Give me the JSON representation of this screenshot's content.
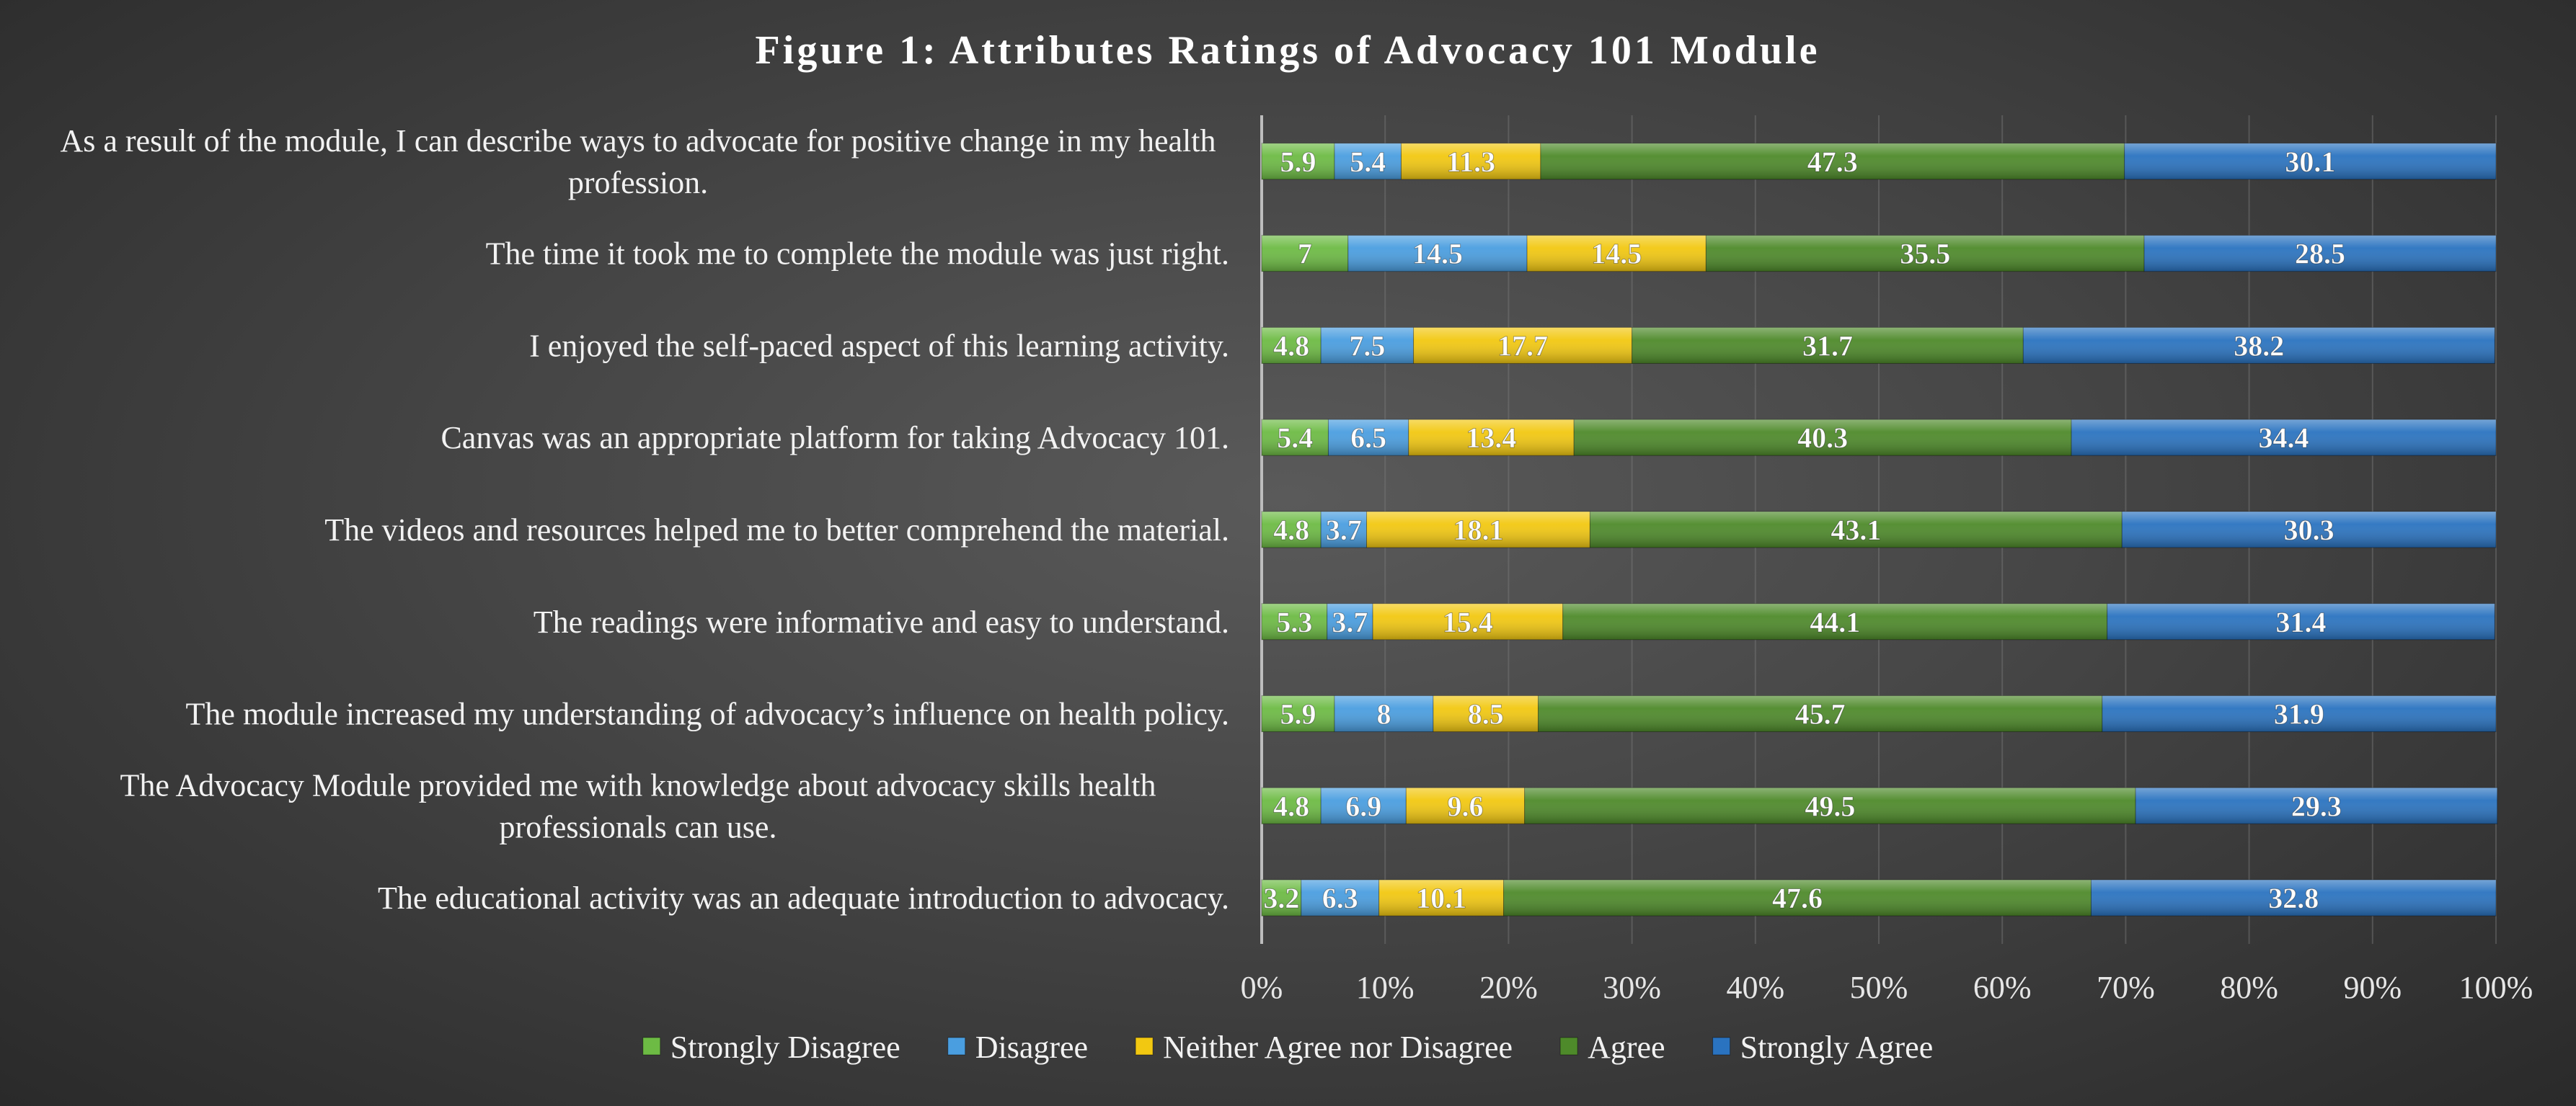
{
  "chart_data": {
    "type": "bar",
    "orientation": "horizontal",
    "stacked": "percent",
    "title": "Figure 1: Attributes Ratings of Advocacy 101 Module",
    "xlabel": "",
    "ylabel": "",
    "xlim": [
      0,
      100
    ],
    "x_ticks": [
      "0%",
      "10%",
      "20%",
      "30%",
      "40%",
      "50%",
      "60%",
      "70%",
      "80%",
      "90%",
      "100%"
    ],
    "grid": "vertical",
    "legend_position": "bottom",
    "categories": [
      "As a result of the module, I can describe ways to advocate for positive change in my health profession.",
      "The time it took me to complete the module was just right.",
      "I enjoyed the self-paced aspect of this learning activity.",
      "Canvas was an appropriate platform for taking Advocacy 101.",
      "The videos and resources helped me to better comprehend the material.",
      "The readings were informative and easy to understand.",
      "The module increased my understanding of advocacy’s influence on health policy.",
      "The Advocacy Module provided me with knowledge about advocacy skills health professionals can use.",
      "The educational activity was an adequate introduction to advocacy."
    ],
    "series": [
      {
        "name": "Strongly Disagree",
        "color": "#6dbb44",
        "values": [
          5.9,
          7,
          4.8,
          5.4,
          4.8,
          5.3,
          5.9,
          4.8,
          3.2
        ]
      },
      {
        "name": "Disagree",
        "color": "#4a9ee0",
        "values": [
          5.4,
          14.5,
          7.5,
          6.5,
          3.7,
          3.7,
          8,
          6.9,
          6.3
        ]
      },
      {
        "name": "Neither Agree nor Disagree",
        "color": "#f2c811",
        "values": [
          11.3,
          14.5,
          17.7,
          13.4,
          18.1,
          15.4,
          8.5,
          9.6,
          10.1
        ]
      },
      {
        "name": "Agree",
        "color": "#4e8a2a",
        "values": [
          47.3,
          35.5,
          31.7,
          40.3,
          43.1,
          44.1,
          45.7,
          49.5,
          47.6
        ]
      },
      {
        "name": "Strongly Agree",
        "color": "#2a73c0",
        "values": [
          30.1,
          28.5,
          38.2,
          34.4,
          30.3,
          31.4,
          31.9,
          29.3,
          32.8
        ]
      }
    ]
  }
}
